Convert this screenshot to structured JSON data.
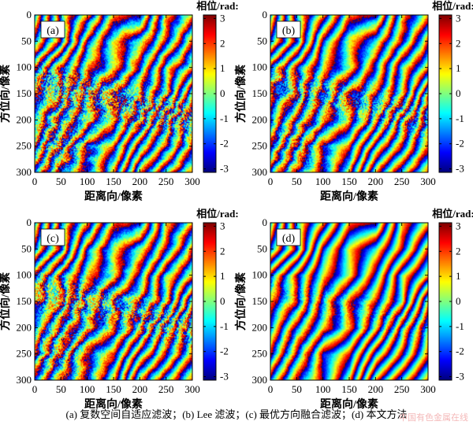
{
  "figure": {
    "caption": "(a) 复数空间自适应滤波；(b) Lee 滤波；(c) 最优方向融合滤波；(d) 本文方法",
    "watermark": "中国有色金属在线"
  },
  "chart_data": [
    {
      "type": "heatmap",
      "panel_label": "(a)",
      "xlabel": "距离向/像素",
      "ylabel": "方位向/像素",
      "xlim": [
        0,
        300
      ],
      "ylim": [
        0,
        300
      ],
      "xticks": [
        0,
        50,
        100,
        150,
        200,
        250,
        300
      ],
      "yticks": [
        0,
        50,
        100,
        150,
        200,
        250,
        300
      ],
      "colorbar": {
        "title": "相位/rad:",
        "min": -3.14,
        "max": 3.14,
        "ticks": [
          3,
          2,
          1,
          0,
          -1,
          -2,
          -3
        ],
        "colormap": "jet"
      },
      "noise_level": 1.0,
      "colors": {
        "noise_seed": 11
      }
    },
    {
      "type": "heatmap",
      "panel_label": "(b)",
      "xlabel": "距离向/像素",
      "ylabel": "方位向/像素",
      "xlim": [
        0,
        300
      ],
      "ylim": [
        0,
        300
      ],
      "xticks": [
        0,
        50,
        100,
        150,
        200,
        250,
        300
      ],
      "yticks": [
        0,
        50,
        100,
        150,
        200,
        250,
        300
      ],
      "colorbar": {
        "title": "相位/rad:",
        "min": -3.14,
        "max": 3.14,
        "ticks": [
          3,
          2,
          1,
          0,
          -1,
          -2,
          -3
        ],
        "colormap": "jet"
      },
      "noise_level": 0.7,
      "colors": {
        "noise_seed": 23
      }
    },
    {
      "type": "heatmap",
      "panel_label": "(c)",
      "xlabel": "距离向/像素",
      "ylabel": "方位向/像素",
      "xlim": [
        0,
        300
      ],
      "ylim": [
        0,
        300
      ],
      "xticks": [
        0,
        50,
        100,
        150,
        200,
        250,
        300
      ],
      "yticks": [
        0,
        50,
        100,
        150,
        200,
        250,
        300
      ],
      "colorbar": {
        "title": "相位/rad:",
        "min": -3.14,
        "max": 3.14,
        "ticks": [
          3,
          2,
          1,
          0,
          -1,
          -2,
          -3
        ],
        "colormap": "jet"
      },
      "noise_level": 0.85,
      "colors": {
        "noise_seed": 37
      }
    },
    {
      "type": "heatmap",
      "panel_label": "(d)",
      "xlabel": "距离向/像素",
      "ylabel": "方位向/像素",
      "xlim": [
        0,
        300
      ],
      "ylim": [
        0,
        300
      ],
      "xticks": [
        0,
        50,
        100,
        150,
        200,
        250,
        300
      ],
      "yticks": [
        0,
        50,
        100,
        150,
        200,
        250,
        300
      ],
      "colorbar": {
        "title": "相位/rad:",
        "min": -3.14,
        "max": 3.14,
        "ticks": [
          3,
          2,
          1,
          0,
          -1,
          -2,
          -3
        ],
        "colormap": "jet"
      },
      "noise_level": 0.3,
      "colors": {
        "noise_seed": 53
      }
    }
  ]
}
